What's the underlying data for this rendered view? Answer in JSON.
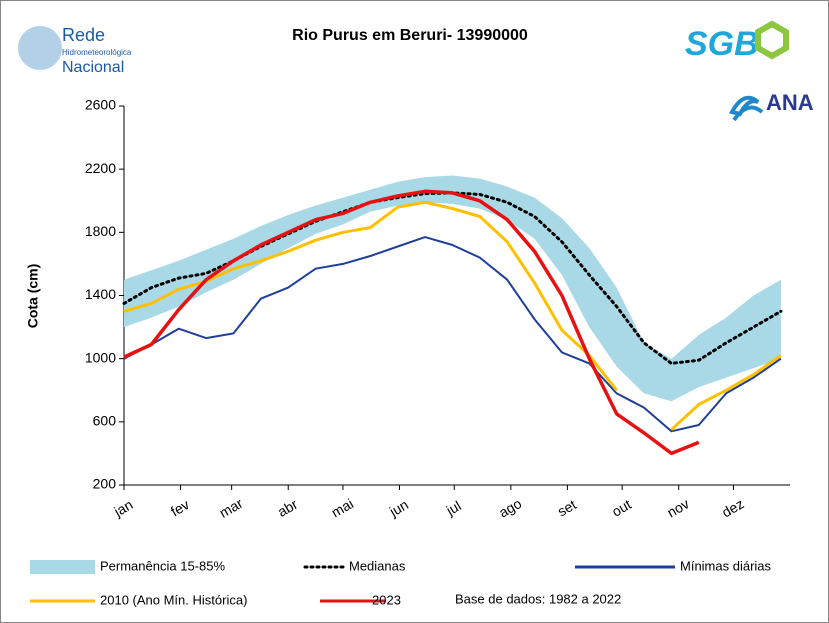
{
  "chart_data": {
    "type": "line",
    "title": "Rio Purus em Beruri- 13990000",
    "y_label": "Cota (cm)",
    "note": "Base de dados: 1982 a 2022",
    "logos": {
      "rede": [
        "Rede",
        "Hidrometeorológica",
        "Nacional"
      ],
      "sgb": "SGB",
      "ana": "ANA"
    },
    "x": [
      0,
      15,
      30,
      45,
      60,
      75,
      90,
      105,
      120,
      135,
      150,
      165,
      180,
      195,
      210,
      225,
      240,
      255,
      270,
      285,
      300,
      315,
      330,
      345,
      360
    ],
    "xlim": [
      0,
      365
    ],
    "xticks": [
      {
        "value": 0,
        "label": "jan"
      },
      {
        "value": 31,
        "label": "fev"
      },
      {
        "value": 59,
        "label": "mar"
      },
      {
        "value": 90,
        "label": "abr"
      },
      {
        "value": 120,
        "label": "mai"
      },
      {
        "value": 151,
        "label": "jun"
      },
      {
        "value": 181,
        "label": "jul"
      },
      {
        "value": 212,
        "label": "ago"
      },
      {
        "value": 243,
        "label": "set"
      },
      {
        "value": 273,
        "label": "out"
      },
      {
        "value": 304,
        "label": "nov"
      },
      {
        "value": 334,
        "label": "dez"
      }
    ],
    "ylim": [
      200,
      2600
    ],
    "yticks": [
      200,
      600,
      1000,
      1400,
      1800,
      2200,
      2600
    ],
    "series": [
      {
        "name": "Permanência 15-85%",
        "color": "#a9d8e6",
        "kind": "band",
        "low": [
          1200,
          1260,
          1330,
          1420,
          1500,
          1600,
          1700,
          1790,
          1850,
          1930,
          1970,
          1990,
          1980,
          1950,
          1880,
          1760,
          1530,
          1200,
          950,
          780,
          730,
          820,
          880,
          940,
          1000
        ],
        "high": [
          1500,
          1560,
          1620,
          1690,
          1760,
          1840,
          1910,
          1970,
          2020,
          2070,
          2120,
          2150,
          2160,
          2140,
          2090,
          2020,
          1890,
          1700,
          1450,
          1100,
          1000,
          1150,
          1260,
          1400,
          1500
        ]
      },
      {
        "name": "Medianas",
        "color": "#000000",
        "style": "dotted",
        "values": [
          1350,
          1450,
          1510,
          1540,
          1620,
          1710,
          1790,
          1870,
          1930,
          1990,
          2020,
          2045,
          2050,
          2040,
          1990,
          1900,
          1740,
          1530,
          1330,
          1100,
          970,
          990,
          1100,
          1200,
          1300
        ]
      },
      {
        "name": "Mínimas diárias",
        "color": "#1f3f99",
        "values": [
          1000,
          1090,
          1190,
          1130,
          1160,
          1380,
          1450,
          1570,
          1600,
          1650,
          1710,
          1770,
          1720,
          1640,
          1500,
          1250,
          1040,
          970,
          780,
          690,
          540,
          580,
          780,
          880,
          1000
        ]
      },
      {
        "name": "2010 (Ano Mín. Histórica)",
        "color": "#ffc000",
        "values": [
          1300,
          1350,
          1440,
          1490,
          1570,
          1620,
          1680,
          1750,
          1800,
          1830,
          1960,
          1990,
          1950,
          1900,
          1740,
          1480,
          1180,
          1020,
          800,
          null,
          550,
          710,
          800,
          900,
          1020
        ]
      },
      {
        "name": "2023",
        "color": "#e81010",
        "values": [
          1010,
          1090,
          1310,
          1500,
          1620,
          1720,
          1800,
          1880,
          1920,
          1990,
          2030,
          2060,
          2050,
          2000,
          1880,
          1680,
          1400,
          1000,
          650,
          530,
          400,
          470,
          null,
          null,
          null
        ]
      }
    ]
  }
}
